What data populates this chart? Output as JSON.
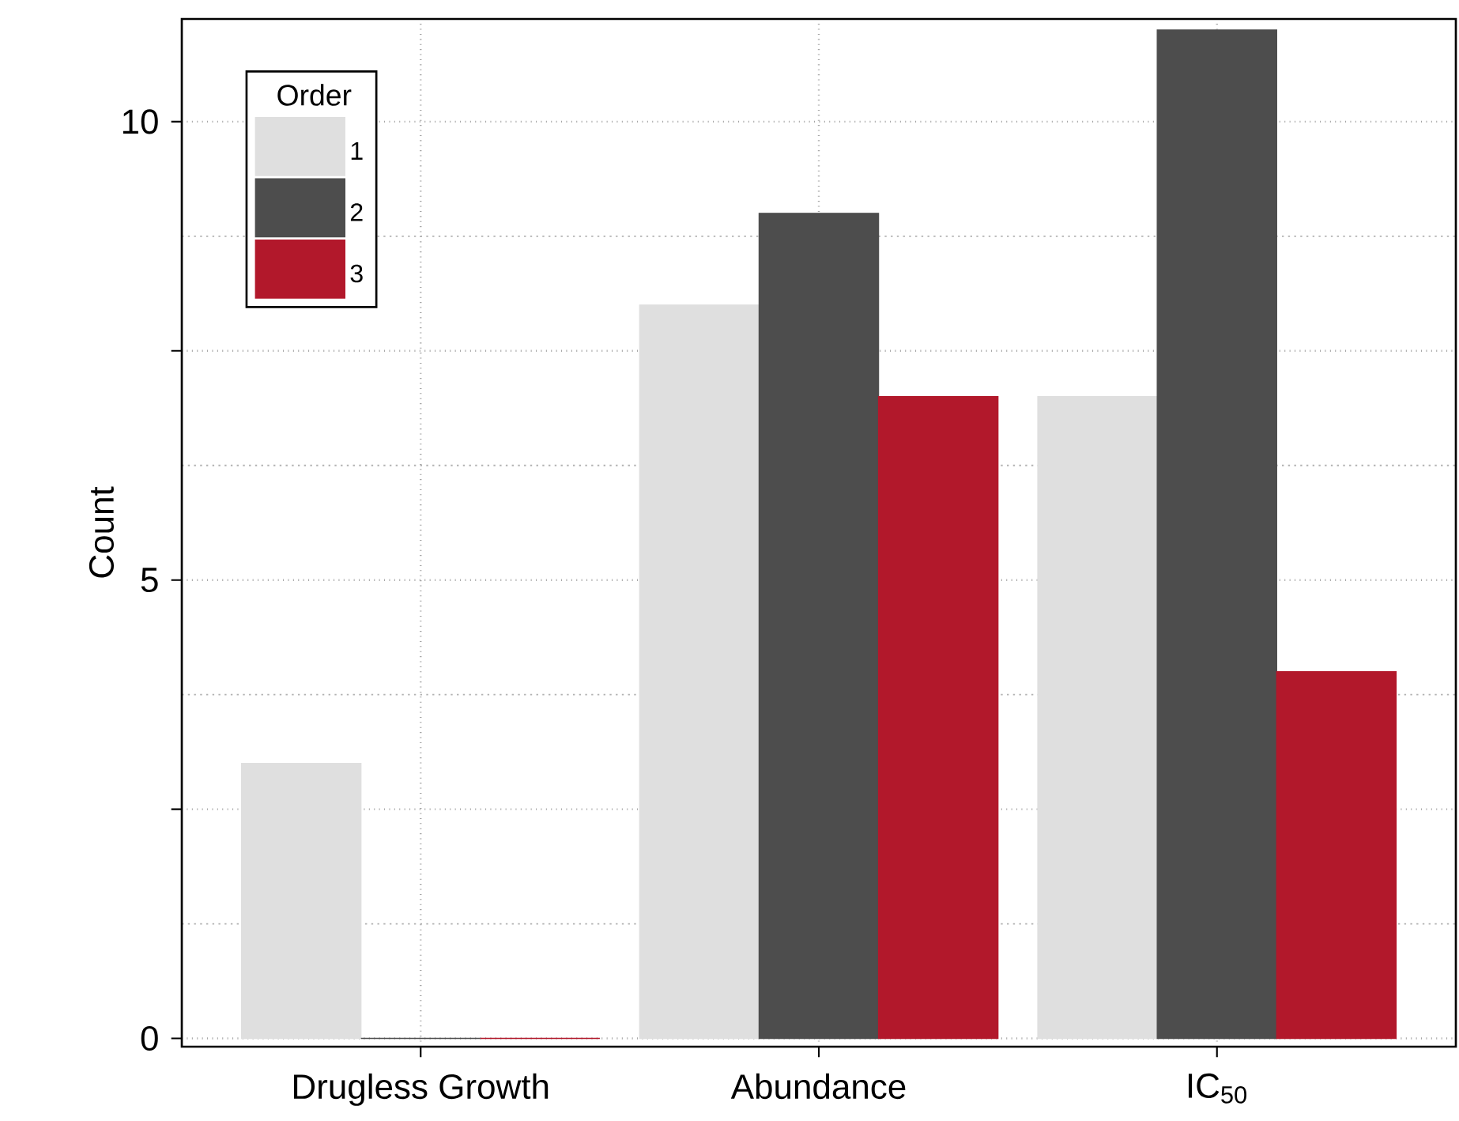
{
  "chart_data": {
    "type": "bar",
    "ylabel": "Count",
    "legend_title": "Order",
    "categories": [
      "Drugless Growth",
      "Abundance",
      "IC$_{50}$"
    ],
    "series": [
      {
        "name": "1",
        "color": "#dfdfdf",
        "values": [
          3,
          8,
          7
        ]
      },
      {
        "name": "2",
        "color": "#4d4d4d",
        "values": [
          0,
          9,
          11
        ]
      },
      {
        "name": "3",
        "color": "#b2182b",
        "values": [
          0,
          7,
          4
        ]
      }
    ],
    "ylim": [
      -0.09,
      11.12
    ],
    "yticks": [
      0,
      {
        "value": 2.5,
        "label": null
      },
      5,
      {
        "value": 7.5,
        "label": null
      },
      10
    ],
    "grid": true,
    "legend": "top left"
  }
}
